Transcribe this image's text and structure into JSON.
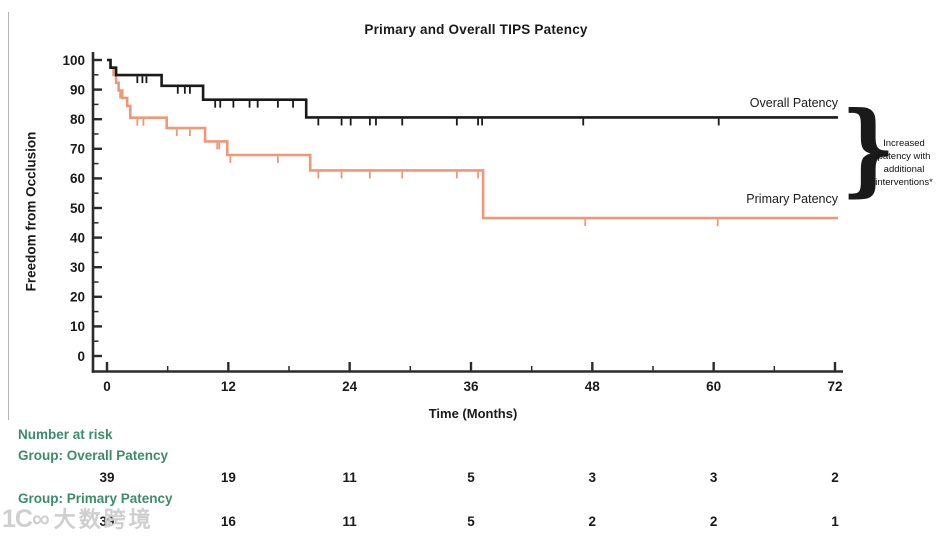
{
  "title": "Primary and Overall TIPS Patency",
  "axes": {
    "x": {
      "label": "Time (Months)",
      "range": [
        0,
        72
      ],
      "major_ticks": [
        0,
        12,
        24,
        36,
        48,
        60,
        72
      ],
      "minor_ticks": [
        6,
        18,
        30,
        42,
        54,
        66
      ]
    },
    "y": {
      "label": "Freedom from Occlusion",
      "range": [
        0,
        100
      ],
      "major_ticks": [
        100,
        90,
        80,
        70,
        60,
        50,
        40,
        30,
        20,
        10,
        0
      ],
      "minor_ticks": [
        95,
        85,
        75,
        65,
        55,
        45,
        35,
        25,
        15,
        5
      ]
    }
  },
  "chart_data": {
    "type": "line",
    "subtype": "kaplan-meier-step",
    "title": "Primary and Overall TIPS Patency",
    "xlabel": "Time (Months)",
    "ylabel": "Freedom from Occlusion",
    "xlim": [
      0,
      72
    ],
    "ylim": [
      0,
      100
    ],
    "grid": false,
    "series": [
      {
        "name": "Primary Patency",
        "color": "#EF9776",
        "steps": [
          [
            0,
            100
          ],
          [
            0.35,
            97.4
          ],
          [
            0.65,
            94.9
          ],
          [
            0.9,
            92.3
          ],
          [
            1.15,
            89.7
          ],
          [
            1.5,
            87.2
          ],
          [
            2.0,
            84.5
          ],
          [
            2.3,
            80.5
          ],
          [
            5.9,
            77.0
          ],
          [
            9.7,
            72.5
          ],
          [
            11.9,
            67.9
          ],
          [
            20.1,
            62.7
          ],
          [
            37.2,
            46.6
          ],
          [
            72.3,
            46.6
          ]
        ],
        "censors": [
          [
            1.3,
            89.7
          ],
          [
            3.0,
            80.5
          ],
          [
            3.6,
            80.5
          ],
          [
            6.9,
            77.0
          ],
          [
            8.2,
            77.0
          ],
          [
            10.9,
            72.5
          ],
          [
            11.1,
            72.5
          ],
          [
            12.2,
            67.9
          ],
          [
            16.9,
            67.9
          ],
          [
            20.9,
            62.7
          ],
          [
            23.2,
            62.7
          ],
          [
            26.0,
            62.7
          ],
          [
            29.2,
            62.7
          ],
          [
            34.6,
            62.7
          ],
          [
            36.7,
            62.7
          ],
          [
            47.3,
            46.6
          ],
          [
            60.4,
            46.6
          ]
        ]
      },
      {
        "name": "Overall Patency",
        "color": "#1a1a1a",
        "steps": [
          [
            0,
            100
          ],
          [
            0.35,
            97.4
          ],
          [
            0.9,
            94.9
          ],
          [
            5.4,
            91.3
          ],
          [
            9.5,
            86.6
          ],
          [
            19.7,
            80.6
          ],
          [
            72.3,
            80.6
          ]
        ],
        "censors": [
          [
            3.0,
            94.9
          ],
          [
            3.5,
            94.9
          ],
          [
            3.9,
            94.9
          ],
          [
            7.0,
            91.3
          ],
          [
            7.7,
            91.3
          ],
          [
            8.2,
            91.3
          ],
          [
            10.7,
            86.6
          ],
          [
            11.2,
            86.6
          ],
          [
            12.5,
            86.6
          ],
          [
            14.1,
            86.6
          ],
          [
            14.9,
            86.6
          ],
          [
            16.9,
            86.6
          ],
          [
            18.4,
            86.6
          ],
          [
            20.9,
            80.6
          ],
          [
            23.2,
            80.6
          ],
          [
            24.1,
            80.6
          ],
          [
            26.0,
            80.6
          ],
          [
            26.6,
            80.6
          ],
          [
            29.2,
            80.6
          ],
          [
            34.6,
            80.6
          ],
          [
            36.7,
            80.6
          ],
          [
            37.1,
            80.6
          ],
          [
            47.1,
            80.6
          ],
          [
            60.5,
            80.6
          ]
        ]
      }
    ]
  },
  "curve_labels": {
    "overall": "Overall Patency",
    "primary": "Primary Patency"
  },
  "annotation": {
    "brace": "}",
    "lines": [
      "Increased",
      "patency with",
      "additional",
      "interventions*"
    ]
  },
  "risk_table": {
    "heading": "Number at risk",
    "time_points": [
      0,
      12,
      24,
      36,
      48,
      60,
      72
    ],
    "groups": [
      {
        "label": "Group: Overall Patency",
        "values": [
          39,
          19,
          11,
          5,
          3,
          3,
          2
        ]
      },
      {
        "label": "Group: Primary Patency",
        "values": [
          39,
          16,
          11,
          5,
          2,
          2,
          1
        ]
      }
    ]
  },
  "watermark": {
    "logo": "1C∞",
    "text": "大数跨境"
  },
  "colors": {
    "overall": "#1a1a1a",
    "primary": "#EF9776",
    "axis": "#2b2b2b",
    "risk_text": "#3C8C6A",
    "watermark": "#c7c7c7"
  }
}
